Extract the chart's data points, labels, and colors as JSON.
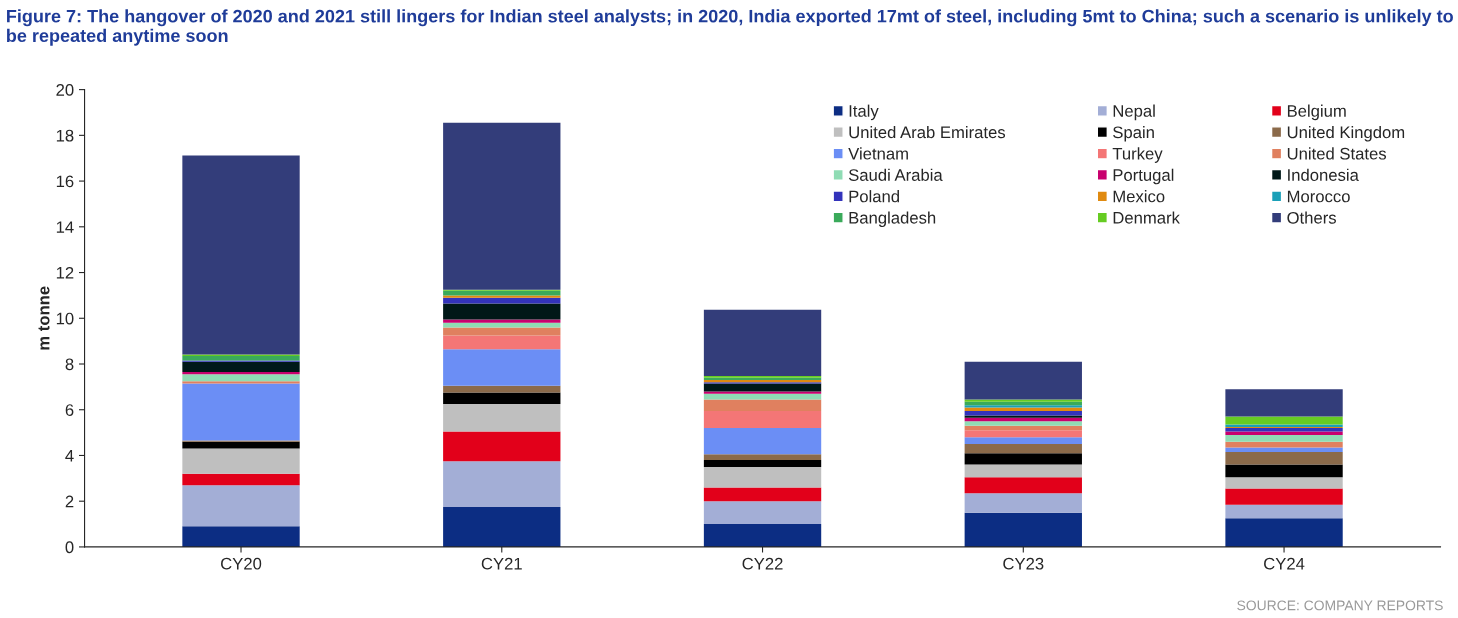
{
  "chart_data": {
    "type": "bar",
    "stacked": true,
    "title": "Figure 7: The hangover of 2020 and 2021 still lingers for Indian steel analysts; in 2020, India exported 17mt of steel, including 5mt to China; such a scenario is unlikely to be repeated anytime soon",
    "ylabel": "m tonne",
    "categories": [
      "CY20",
      "CY21",
      "CY22",
      "CY23",
      "CY24"
    ],
    "ylim": [
      0,
      20
    ],
    "yticks": [
      0,
      2,
      4,
      6,
      8,
      10,
      12,
      14,
      16,
      18,
      20
    ],
    "grid": false,
    "legend": "top right",
    "annotations": [
      "SOURCE: COMPANY REPORTS"
    ],
    "series": [
      {
        "name": "Italy",
        "color": "#0c2d83",
        "values": [
          0.9,
          1.75,
          1.0,
          1.5,
          1.25
        ]
      },
      {
        "name": "Nepal",
        "color": "#a3aed6",
        "values": [
          1.8,
          2.0,
          1.0,
          0.85,
          0.6
        ]
      },
      {
        "name": "Belgium",
        "color": "#e2001a",
        "values": [
          0.5,
          1.3,
          0.6,
          0.7,
          0.7
        ]
      },
      {
        "name": "United Arab Emirates",
        "color": "#bfbfbf",
        "values": [
          1.1,
          1.2,
          0.9,
          0.55,
          0.5
        ]
      },
      {
        "name": "Spain",
        "color": "#000000",
        "values": [
          0.3,
          0.5,
          0.3,
          0.5,
          0.55
        ]
      },
      {
        "name": "United Kingdom",
        "color": "#8b6a4a",
        "values": [
          0.05,
          0.3,
          0.25,
          0.4,
          0.55
        ]
      },
      {
        "name": "Vietnam",
        "color": "#6b8ef5",
        "values": [
          2.5,
          1.6,
          1.15,
          0.3,
          0.2
        ]
      },
      {
        "name": "Turkey",
        "color": "#f47676",
        "values": [
          0,
          0.6,
          0.75,
          0.3,
          0
        ]
      },
      {
        "name": "United States",
        "color": "#e0805f",
        "values": [
          0.1,
          0.35,
          0.5,
          0.2,
          0.25
        ]
      },
      {
        "name": "Saudi Arabia",
        "color": "#8fdcb4",
        "values": [
          0.3,
          0.2,
          0.25,
          0.2,
          0.3
        ]
      },
      {
        "name": "Portugal",
        "color": "#c8006e",
        "values": [
          0.1,
          0.15,
          0.1,
          0.15,
          0.15
        ]
      },
      {
        "name": "Indonesia",
        "color": "#001818",
        "values": [
          0.45,
          0.7,
          0.35,
          0.1,
          0
        ]
      },
      {
        "name": "Poland",
        "color": "#3333bb",
        "values": [
          0.05,
          0.25,
          0.05,
          0.2,
          0.15
        ]
      },
      {
        "name": "Mexico",
        "color": "#e08a10",
        "values": [
          0,
          0.1,
          0.1,
          0.15,
          0.05
        ]
      },
      {
        "name": "Morocco",
        "color": "#1aa0b8",
        "values": [
          0,
          0,
          0,
          0.1,
          0.1
        ]
      },
      {
        "name": "Bangladesh",
        "color": "#3aaa5a",
        "values": [
          0.2,
          0.2,
          0.1,
          0.15,
          0
        ]
      },
      {
        "name": "Denmark",
        "color": "#66cc22",
        "values": [
          0.07,
          0.05,
          0.07,
          0.1,
          0.35
        ]
      },
      {
        "name": "Others",
        "color": "#333d7a",
        "values": [
          8.7,
          7.3,
          2.9,
          1.65,
          1.2
        ]
      }
    ]
  }
}
